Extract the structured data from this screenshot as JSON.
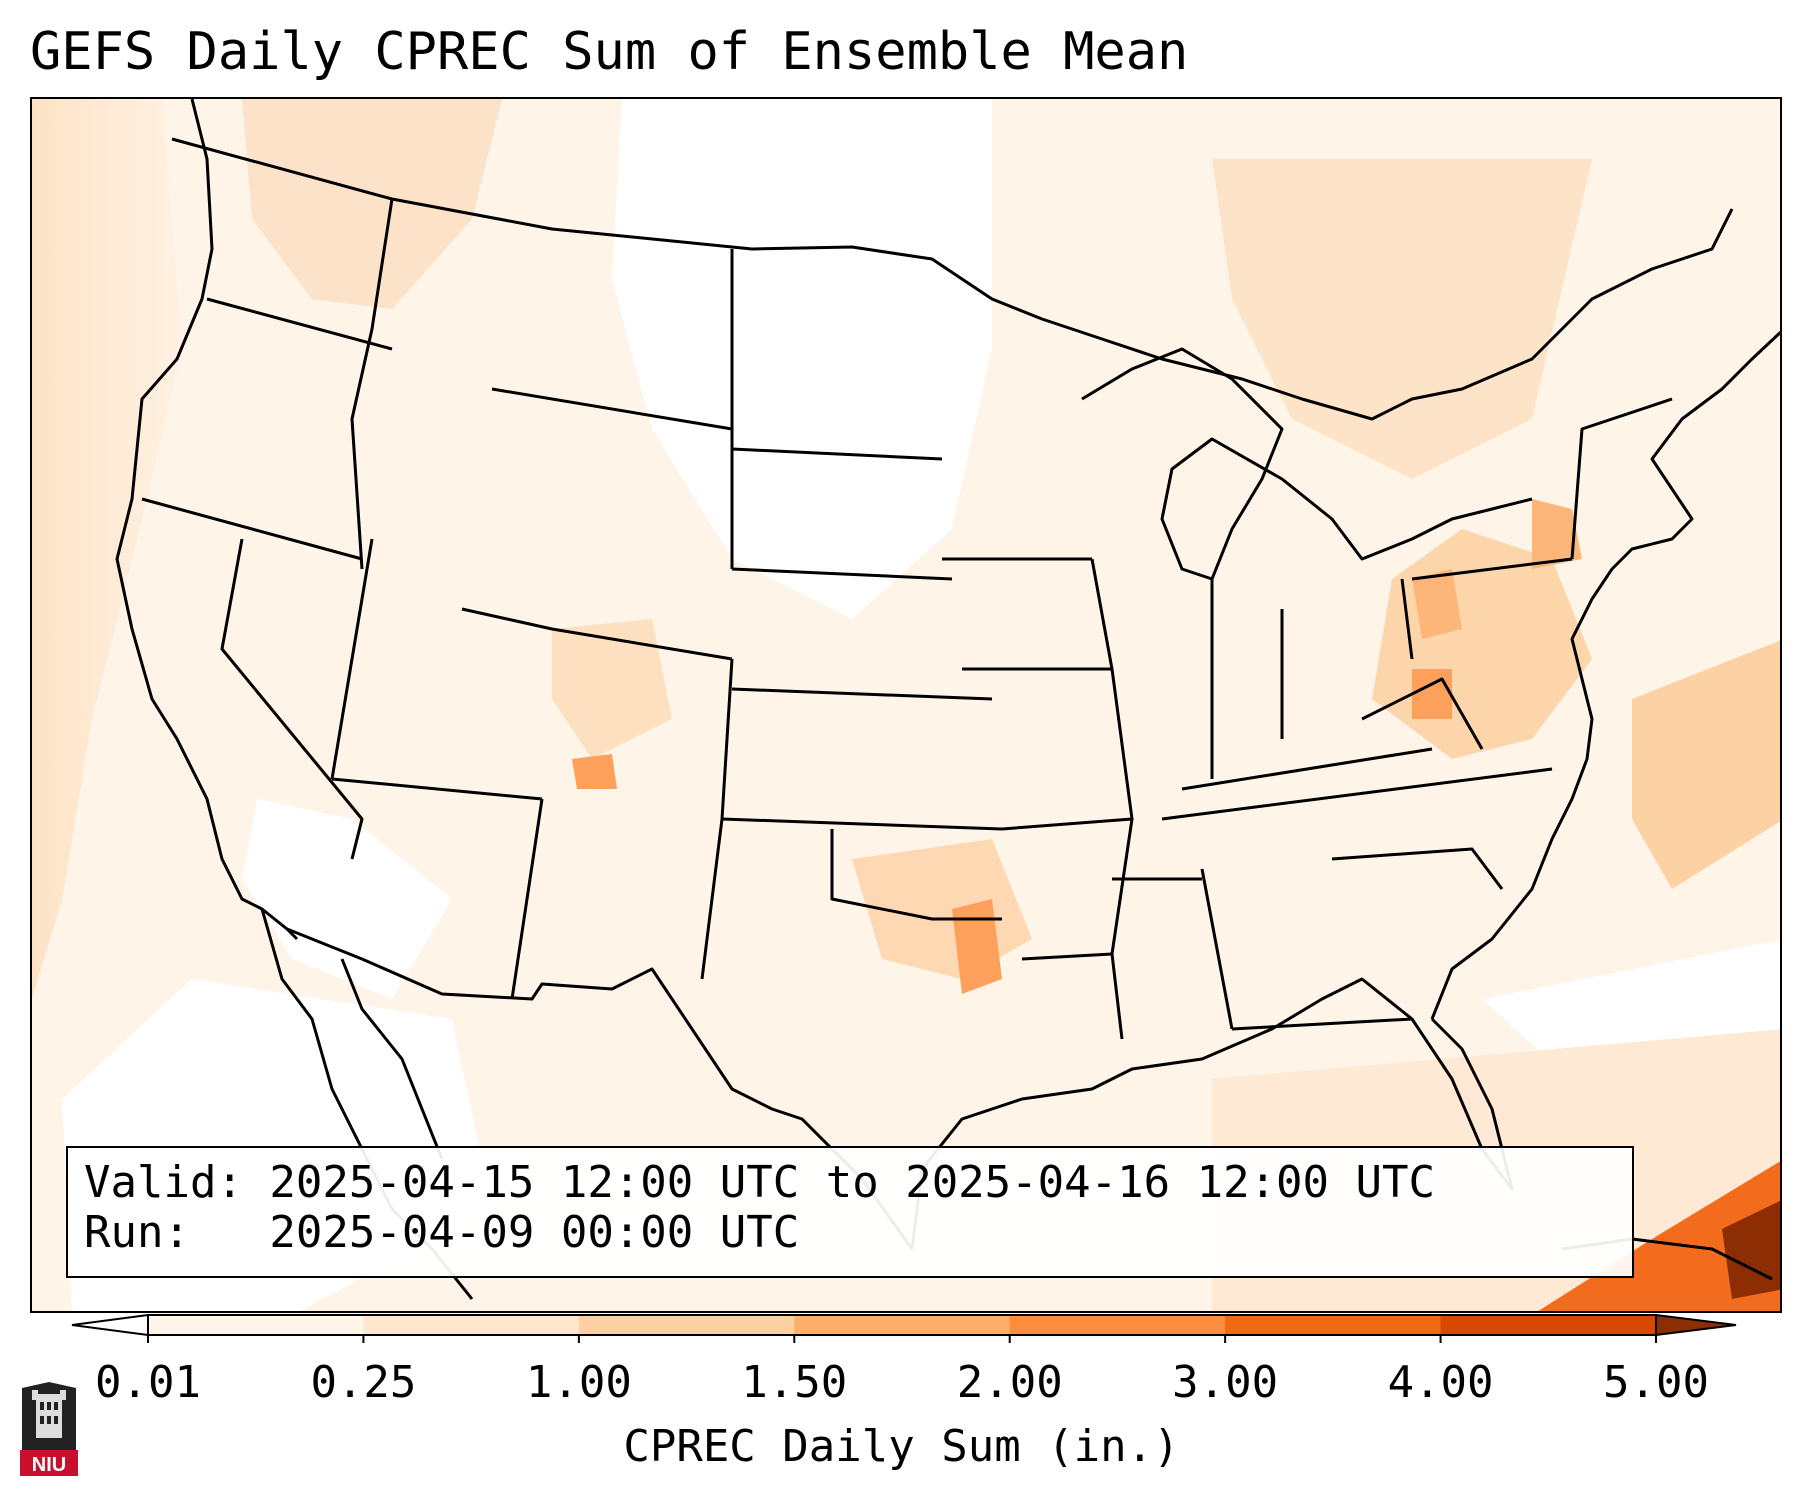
{
  "title": "GEFS Daily CPREC Sum of Ensemble Mean",
  "info": {
    "valid": "Valid: 2025-04-15 12:00 UTC to 2025-04-16 12:00 UTC",
    "run": "Run:   2025-04-09 00:00 UTC"
  },
  "colorbar": {
    "label": "CPREC Daily Sum (in.)",
    "ticks": [
      "0.01",
      "0.25",
      "1.00",
      "1.50",
      "2.00",
      "3.00",
      "4.00",
      "5.00"
    ],
    "colors": {
      "under": "#ffffff",
      "bins": [
        "#fff5eb",
        "#fee6ce",
        "#fdd0a2",
        "#fdae6b",
        "#fd8d3c",
        "#f16913",
        "#d94801"
      ],
      "over": "#8c2d04"
    },
    "extend": "both"
  },
  "logo": {
    "text": "NIU",
    "icon": "niu-logo-icon",
    "colors": {
      "shield": "#222222",
      "banner": "#c8102e"
    }
  },
  "map": {
    "projection": "Lambert conformal (CONUS)",
    "features": [
      "coastlines",
      "state-borders",
      "country-borders"
    ],
    "field": "GEFS ensemble mean convective precipitation, daily sum (in.)"
  }
}
